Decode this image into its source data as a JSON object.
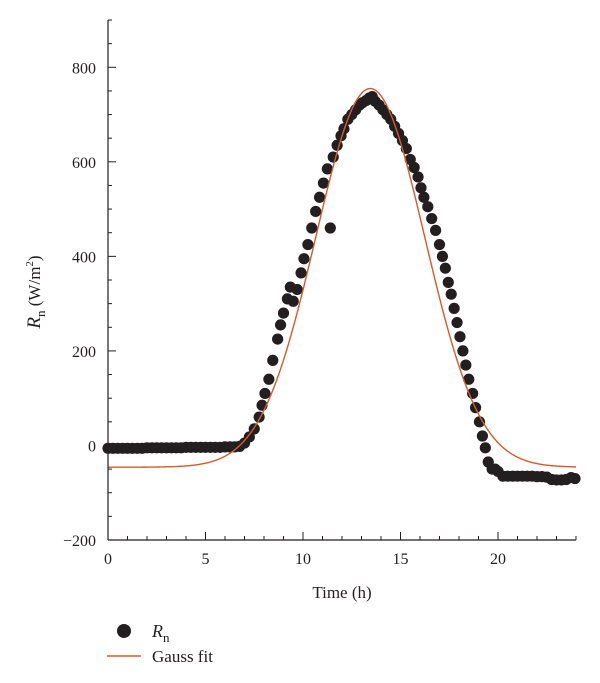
{
  "chart_data": {
    "type": "scatter",
    "xlabel": "Time (h)",
    "ylabel": {
      "symbol": "R",
      "subscript": "n",
      "unit": " (W/m",
      "superscript": "2",
      "close": ")"
    },
    "xlim": [
      0,
      24
    ],
    "ylim": [
      -200,
      900
    ],
    "x_ticks": [
      0,
      5,
      10,
      15,
      20
    ],
    "y_ticks": [
      -200,
      0,
      200,
      400,
      600,
      800
    ],
    "x_minor_step": 1,
    "y_minor_step": 50,
    "grid": false,
    "legend_position": "bottom-left",
    "colors": {
      "points": "#231f20",
      "fit": "#d55a2b",
      "axis": "#231f20"
    },
    "series": [
      {
        "name": "R",
        "name_subscript": "n",
        "kind": "scatter",
        "points": [
          [
            0.0,
            -6
          ],
          [
            0.25,
            -6
          ],
          [
            0.5,
            -6
          ],
          [
            0.75,
            -6
          ],
          [
            1.0,
            -6
          ],
          [
            1.25,
            -6
          ],
          [
            1.5,
            -6
          ],
          [
            1.75,
            -6
          ],
          [
            2.0,
            -5
          ],
          [
            2.25,
            -5
          ],
          [
            2.5,
            -5
          ],
          [
            2.75,
            -5
          ],
          [
            3.0,
            -5
          ],
          [
            3.25,
            -5
          ],
          [
            3.5,
            -5
          ],
          [
            3.75,
            -5
          ],
          [
            4.0,
            -4
          ],
          [
            4.25,
            -4
          ],
          [
            4.5,
            -4
          ],
          [
            4.75,
            -4
          ],
          [
            5.0,
            -4
          ],
          [
            5.25,
            -4
          ],
          [
            5.5,
            -4
          ],
          [
            5.75,
            -4
          ],
          [
            6.0,
            -3
          ],
          [
            6.25,
            -3
          ],
          [
            6.5,
            -3
          ],
          [
            6.75,
            -2
          ],
          [
            7.0,
            5
          ],
          [
            7.25,
            18
          ],
          [
            7.5,
            35
          ],
          [
            7.75,
            60
          ],
          [
            7.9,
            85
          ],
          [
            8.05,
            110
          ],
          [
            8.25,
            140
          ],
          [
            8.45,
            180
          ],
          [
            8.7,
            225
          ],
          [
            8.85,
            255
          ],
          [
            9.0,
            280
          ],
          [
            9.2,
            310
          ],
          [
            9.35,
            335
          ],
          [
            9.5,
            305
          ],
          [
            9.7,
            330
          ],
          [
            9.9,
            365
          ],
          [
            10.05,
            395
          ],
          [
            10.25,
            425
          ],
          [
            10.45,
            460
          ],
          [
            10.65,
            495
          ],
          [
            10.85,
            525
          ],
          [
            11.05,
            555
          ],
          [
            11.25,
            585
          ],
          [
            11.4,
            460
          ],
          [
            11.55,
            610
          ],
          [
            11.75,
            635
          ],
          [
            11.95,
            655
          ],
          [
            12.1,
            670
          ],
          [
            12.3,
            690
          ],
          [
            12.5,
            700
          ],
          [
            12.7,
            710
          ],
          [
            12.9,
            720
          ],
          [
            13.05,
            725
          ],
          [
            13.25,
            730
          ],
          [
            13.4,
            735
          ],
          [
            13.55,
            738
          ],
          [
            13.7,
            728
          ],
          [
            13.9,
            720
          ],
          [
            14.1,
            710
          ],
          [
            14.3,
            700
          ],
          [
            14.5,
            690
          ],
          [
            14.7,
            675
          ],
          [
            14.9,
            660
          ],
          [
            15.1,
            645
          ],
          [
            15.3,
            628
          ],
          [
            15.5,
            605
          ],
          [
            15.7,
            588
          ],
          [
            15.9,
            568
          ],
          [
            16.05,
            545
          ],
          [
            16.2,
            525
          ],
          [
            16.4,
            505
          ],
          [
            16.6,
            480
          ],
          [
            16.8,
            455
          ],
          [
            17.0,
            425
          ],
          [
            17.15,
            400
          ],
          [
            17.3,
            375
          ],
          [
            17.45,
            345
          ],
          [
            17.6,
            320
          ],
          [
            17.75,
            290
          ],
          [
            17.9,
            260
          ],
          [
            18.05,
            230
          ],
          [
            18.2,
            200
          ],
          [
            18.35,
            170
          ],
          [
            18.5,
            140
          ],
          [
            18.7,
            110
          ],
          [
            18.85,
            80
          ],
          [
            19.05,
            50
          ],
          [
            19.2,
            20
          ],
          [
            19.35,
            -5
          ],
          [
            19.5,
            -35
          ],
          [
            19.7,
            -50
          ],
          [
            19.85,
            -50
          ],
          [
            20.0,
            -55
          ],
          [
            20.25,
            -65
          ],
          [
            20.5,
            -65
          ],
          [
            20.75,
            -65
          ],
          [
            21.0,
            -65
          ],
          [
            21.25,
            -65
          ],
          [
            21.5,
            -65
          ],
          [
            21.75,
            -65
          ],
          [
            22.0,
            -66
          ],
          [
            22.25,
            -66
          ],
          [
            22.5,
            -67
          ],
          [
            22.75,
            -72
          ],
          [
            23.0,
            -73
          ],
          [
            23.25,
            -73
          ],
          [
            23.5,
            -72
          ],
          [
            23.75,
            -68
          ],
          [
            23.95,
            -70
          ]
        ]
      },
      {
        "name": "Gauss fit",
        "kind": "line",
        "model": {
          "formula": "y0 + A*exp(-0.5*((x-xc)/w)^2)",
          "y0": -46,
          "A": 801,
          "xc": 13.45,
          "w": 2.8
        }
      }
    ]
  }
}
